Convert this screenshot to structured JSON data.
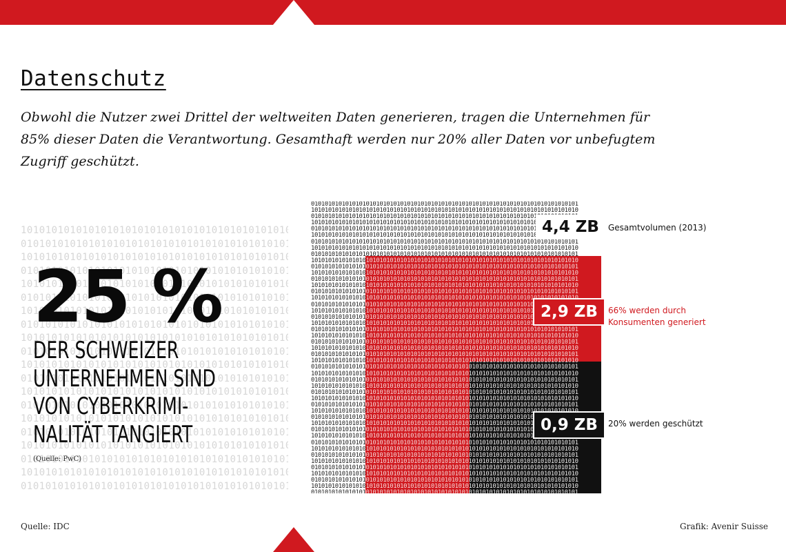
{
  "header": {
    "title": "Datenschutz",
    "lead": "Obwohl die Nutzer zwei Drittel der weltweiten Daten generieren, tragen die Unternehmen für 85% dieser Daten die Verantwortung. Gesamthaft werden nur 20% aller Daten vor unbefugtem Zugriff geschützt."
  },
  "left_panel": {
    "big_number": "25 %",
    "statement_lines": [
      "DER SCHWEIZER",
      "UNTERNEHMEN SIND",
      "VON CYBERKRIMI-",
      "NALITÄT TANGIERT"
    ],
    "source": "(Quelle: PwC)"
  },
  "data_volume": {
    "total": {
      "value": "4,4 ZB",
      "label": "Gesamtvolumen (2013)"
    },
    "consumer": {
      "value": "2,9 ZB",
      "label_line1": "66% werden durch",
      "label_line2": "Konsumenten generiert"
    },
    "protected": {
      "value": "0,9 ZB",
      "label": "20% werden geschützt"
    }
  },
  "colors": {
    "accent": "#d0191f",
    "dark": "#111111",
    "light": "#ffffff"
  },
  "footer": {
    "source": "Quelle: IDC",
    "credit": "Grafik: Avenir Suisse"
  }
}
